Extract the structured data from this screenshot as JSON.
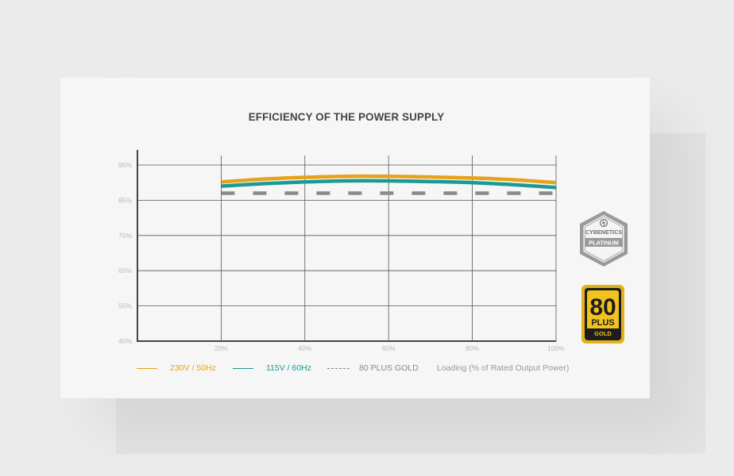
{
  "chart_data": {
    "type": "line",
    "title": "EFFICIENCY OF THE POWER SUPPLY",
    "xlabel": "Loading (% of Rated Output Power)",
    "ylabel": "",
    "x": [
      20,
      30,
      40,
      50,
      60,
      70,
      80,
      90,
      100
    ],
    "x_ticks": [
      "20%",
      "40%",
      "60%",
      "80%",
      "100%"
    ],
    "y_ticks": [
      "95%",
      "85%",
      "75%",
      "65%",
      "55%",
      "45%"
    ],
    "xlim": [
      0,
      100
    ],
    "ylim": [
      45,
      95
    ],
    "grid": true,
    "legend_position": "bottom",
    "series": [
      {
        "name": "230V / 50Hz",
        "color": "#e5a21a",
        "style": "solid",
        "values": [
          90.2,
          91.0,
          91.5,
          91.8,
          91.8,
          91.6,
          91.3,
          90.8,
          90.0
        ]
      },
      {
        "name": "115V / 60Hz",
        "color": "#1a9a95",
        "style": "solid",
        "values": [
          89.0,
          89.7,
          90.2,
          90.5,
          90.5,
          90.3,
          90.0,
          89.4,
          88.6
        ]
      },
      {
        "name": "80 PLUS GOLD",
        "color": "#8a8a8a",
        "style": "dashed",
        "values": [
          87.0,
          87.0,
          87.0,
          87.0,
          87.0,
          87.0,
          87.0,
          87.0,
          87.0
        ]
      }
    ]
  },
  "badges": {
    "cybenetics": {
      "top": "CYBENETICS",
      "bottom": "PLATINUM",
      "icon": "cybenetics-logo",
      "color": "#8c8c8c"
    },
    "plus80": {
      "number": "80",
      "plus": "PLUS",
      "tier": "GOLD",
      "color": "#e0b21c"
    }
  }
}
